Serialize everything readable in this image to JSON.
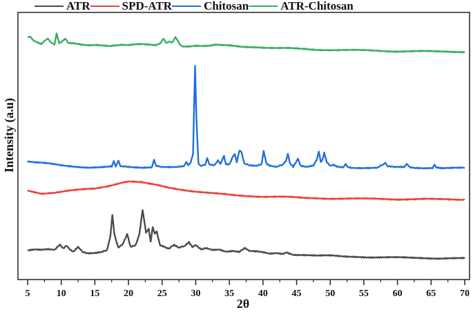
{
  "chart_data": {
    "type": "line",
    "title": "",
    "xlabel": "2θ",
    "ylabel": "Intensity (a.u)",
    "xlim": [
      4.5,
      70.5
    ],
    "xticks": [
      5,
      10,
      15,
      20,
      25,
      30,
      35,
      40,
      45,
      50,
      55,
      60,
      65,
      70
    ],
    "yticks": [],
    "grid": false,
    "legend_position": "top, outside plot",
    "legend": [
      "ATR",
      "SPD-ATR",
      "Chitosan",
      "ATR-Chitosan"
    ],
    "note": "y values are stacked/offset arbitrary intensity (0 = plot bottom, 100 = plot top)",
    "series": [
      {
        "name": "ATR",
        "color": "#4a4a4a",
        "x": [
          5,
          6,
          7,
          8,
          9,
          9.8,
          10.3,
          10.8,
          11.3,
          11.8,
          12.5,
          13.2,
          14,
          15,
          16,
          16.8,
          17.3,
          17.6,
          17.9,
          18.5,
          19.2,
          19.8,
          20.3,
          21,
          21.6,
          22.1,
          22.6,
          23,
          23.3,
          23.6,
          23.9,
          24.2,
          24.7,
          25.2,
          26,
          26.8,
          27.5,
          28.3,
          29,
          29.5,
          30,
          30.8,
          31.5,
          32.5,
          33.5,
          34.5,
          35.5,
          36.5,
          37.3,
          38,
          39,
          40,
          41,
          42,
          43,
          43.5,
          44.5,
          46,
          48,
          50,
          52,
          54,
          56,
          58,
          60,
          62,
          64,
          66,
          68,
          70
        ],
        "y": [
          10.9,
          11.2,
          11,
          11.2,
          11,
          13.2,
          11.8,
          12.9,
          11.4,
          10.6,
          12.4,
          10.4,
          10,
          10,
          10.3,
          10.8,
          16,
          24.4,
          17,
          11.8,
          13.2,
          17.2,
          12.4,
          12.8,
          16.8,
          26,
          17.6,
          19.4,
          14.2,
          19.4,
          17.2,
          18,
          13,
          12.6,
          11.6,
          12.8,
          11.8,
          12.4,
          13.8,
          12,
          12.8,
          11.4,
          11.8,
          11.2,
          11.4,
          10.6,
          10.8,
          10.4,
          11.6,
          10.6,
          10.4,
          10.1,
          9.6,
          9.9,
          9.7,
          10.3,
          9.4,
          9.3,
          8.9,
          8.9,
          8.6,
          8.6,
          8.4,
          8.3,
          8.2,
          8.1,
          8.1,
          8,
          8,
          7.9
        ]
      },
      {
        "name": "SPD-ATR",
        "color": "#e8403d",
        "x": [
          5,
          7,
          9,
          11,
          13,
          15,
          17,
          19,
          20,
          21,
          22,
          23,
          24,
          26,
          28,
          30,
          32,
          34,
          36,
          38,
          40,
          42,
          44,
          46,
          48,
          50,
          52,
          54,
          56,
          58,
          60,
          62,
          64,
          66,
          68,
          70
        ],
        "y": [
          33.3,
          32.3,
          32.6,
          33.2,
          33.6,
          34,
          35.1,
          36.4,
          36.8,
          36.6,
          36.3,
          35.8,
          35.4,
          34.4,
          33.7,
          33,
          32.4,
          31.9,
          31.5,
          31.3,
          31.1,
          31,
          30.8,
          30.5,
          30.5,
          30.4,
          30.3,
          30.2,
          30.2,
          30.2,
          30.1,
          30.1,
          30.1,
          30,
          30,
          30
        ]
      },
      {
        "name": "Chitosan",
        "color": "#1f6fdb",
        "x": [
          5,
          6,
          8,
          10,
          12,
          14,
          16,
          17.5,
          17.8,
          18.1,
          18.5,
          18.8,
          19.2,
          20,
          22,
          23.5,
          23.8,
          24.1,
          25,
          27,
          28.2,
          28.6,
          28.9,
          29.2,
          29.6,
          29.9,
          30.1,
          30.4,
          30.8,
          31.4,
          31.7,
          32,
          32.8,
          33.3,
          33.7,
          34,
          34.2,
          34.5,
          35,
          35.5,
          35.8,
          36.1,
          36.5,
          36.8,
          37.2,
          38,
          39,
          39.8,
          40.1,
          40.5,
          41,
          42,
          42.9,
          43.4,
          43.7,
          44,
          44.5,
          45.2,
          45.5,
          45.8,
          46.5,
          47.5,
          48,
          48.3,
          48.6,
          48.9,
          49.1,
          49.5,
          50,
          50.5,
          51,
          52,
          52.3,
          52.6,
          53.5,
          55,
          57,
          57.8,
          58.2,
          58.6,
          59.5,
          61,
          61.4,
          61.8,
          62.5,
          64,
          65.2,
          65.5,
          65.8,
          66.5,
          68,
          70
        ],
        "y": [
          44.2,
          43.8,
          43.4,
          42.8,
          42.4,
          42,
          42,
          42.2,
          44.2,
          42.4,
          44.2,
          42.6,
          42.2,
          42.1,
          42,
          42.2,
          45,
          42.4,
          42.2,
          42,
          42.4,
          44.4,
          42.8,
          43.4,
          47,
          80.2,
          61,
          43.4,
          42.8,
          42.8,
          45.4,
          43.2,
          43,
          44.6,
          43.2,
          45.4,
          46.4,
          43.4,
          43.2,
          46,
          47,
          43.6,
          48.2,
          47.4,
          43.6,
          42.6,
          42.4,
          43.2,
          48.4,
          43.4,
          42.6,
          42.2,
          42.8,
          44.2,
          47,
          43.8,
          42.4,
          45.4,
          43,
          42.4,
          42.2,
          42.6,
          44.8,
          47.6,
          44.2,
          45.4,
          47.8,
          43.8,
          42.4,
          42.8,
          42.2,
          42,
          43.6,
          42.2,
          41.9,
          41.9,
          41.9,
          42.8,
          44,
          42.4,
          42,
          42,
          43.2,
          42.2,
          41.8,
          41.8,
          41.8,
          43,
          42,
          41.8,
          41.8,
          41.7
        ]
      },
      {
        "name": "ATR-Chitosan",
        "color": "#35ad62",
        "x": [
          5,
          5.4,
          6,
          7,
          7.6,
          8,
          8.6,
          9,
          9.3,
          9.7,
          10.2,
          10.6,
          11.2,
          12,
          13,
          14,
          15,
          16,
          17,
          18,
          19,
          20,
          21,
          22,
          23,
          24,
          24.6,
          25.2,
          25.6,
          26,
          26.5,
          27,
          27.3,
          27.6,
          28,
          29,
          30,
          31,
          32,
          33,
          34,
          35,
          36,
          37,
          38,
          39,
          40,
          42,
          44,
          46,
          48,
          50,
          52,
          54,
          56,
          58,
          60,
          62,
          64,
          66,
          68,
          70
        ],
        "y": [
          90.5,
          90.6,
          89.4,
          88.4,
          89.2,
          90.2,
          88.4,
          88.2,
          91.8,
          88.6,
          89.4,
          90,
          88.6,
          88.2,
          87.8,
          87.6,
          87.8,
          87.8,
          87.6,
          87.8,
          88,
          87.8,
          88,
          88,
          87.8,
          87.6,
          88.4,
          89.8,
          88.6,
          89.2,
          88.8,
          91,
          89.8,
          87.8,
          87.4,
          87.4,
          87.6,
          87.4,
          87.4,
          87.8,
          87.6,
          87.6,
          87.4,
          87.2,
          87.2,
          87.1,
          86.9,
          86.6,
          86.5,
          86.3,
          86.1,
          86,
          85.9,
          85.8,
          85.7,
          85.6,
          85.5,
          85.5,
          85.4,
          85.3,
          85.3,
          85.3
        ]
      }
    ]
  },
  "legend_items": [
    {
      "label": "ATR",
      "color": "#4a4a4a"
    },
    {
      "label": "SPD-ATR",
      "color": "#e8403d"
    },
    {
      "label": "Chitosan",
      "color": "#1f6fdb"
    },
    {
      "label": "ATR-Chitosan",
      "color": "#35ad62"
    }
  ],
  "axes": {
    "xlabel": "2θ",
    "ylabel": "Intensity (a.u)"
  }
}
